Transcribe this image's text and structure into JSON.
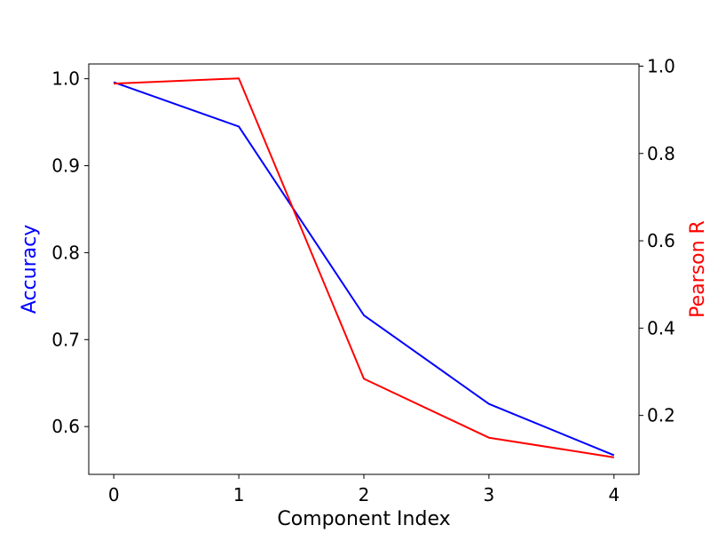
{
  "chart_data": {
    "type": "line",
    "x": [
      0,
      1,
      2,
      3,
      4
    ],
    "xlabel": "Component Index",
    "xlim": [
      -0.2,
      4.2
    ],
    "xticks": [
      0,
      1,
      2,
      3,
      4
    ],
    "xtick_labels": [
      "0",
      "1",
      "2",
      "3",
      "4"
    ],
    "ylabel_left": "Accuracy",
    "ylim_left": [
      0.545,
      1.017
    ],
    "yticks_left": [
      0.6,
      0.7,
      0.8,
      0.9,
      1.0
    ],
    "ytick_labels_left": [
      "0.6",
      "0.7",
      "0.8",
      "0.9",
      "1.0"
    ],
    "ylabel_right": "Pearson R",
    "ylim_right": [
      0.065,
      1.005
    ],
    "yticks_right": [
      0.2,
      0.4,
      0.6,
      0.8,
      1.0
    ],
    "ytick_labels_right": [
      "0.2",
      "0.4",
      "0.6",
      "0.8",
      "1.0"
    ],
    "grid": false,
    "series": [
      {
        "axis": "left",
        "color": "#0000ff",
        "values": [
          0.996,
          0.945,
          0.728,
          0.626,
          0.567
        ]
      },
      {
        "axis": "right",
        "color": "#ff0000",
        "values": [
          0.96,
          0.972,
          0.284,
          0.149,
          0.104
        ]
      }
    ],
    "left_label_color": "#0000ff",
    "right_label_color": "#ff0000"
  }
}
